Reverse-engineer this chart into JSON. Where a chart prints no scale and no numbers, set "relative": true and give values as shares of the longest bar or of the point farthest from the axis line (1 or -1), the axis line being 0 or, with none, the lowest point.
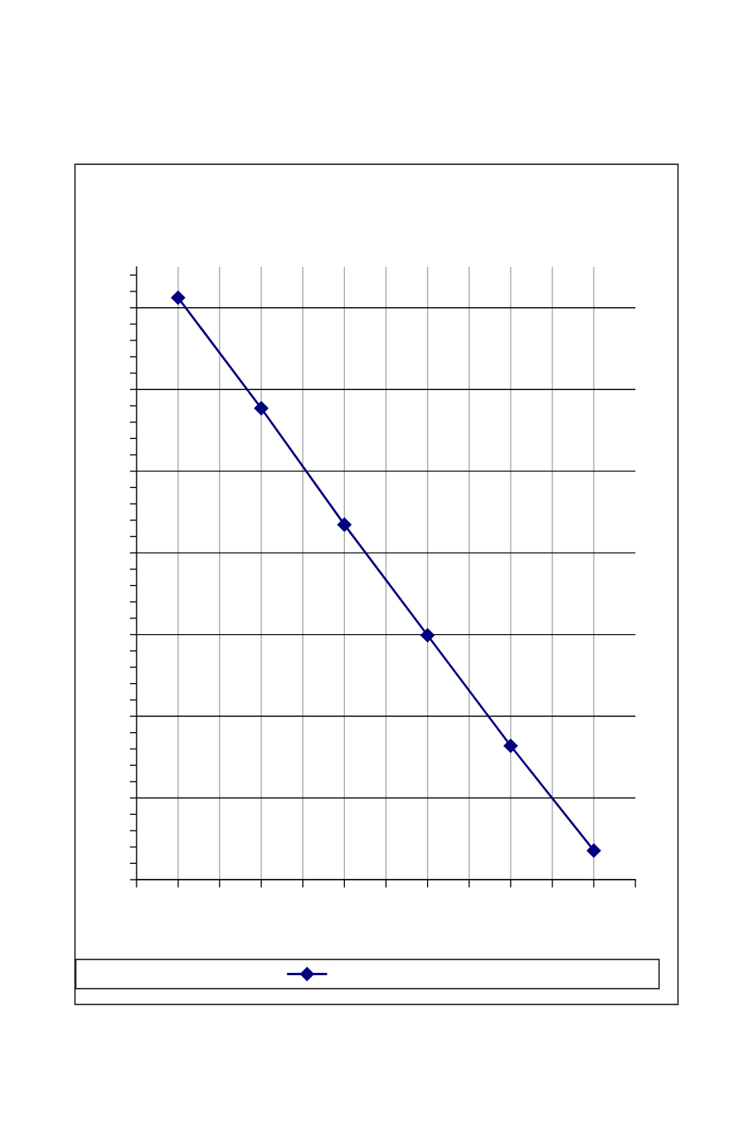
{
  "chart_data": {
    "type": "line",
    "categories": [
      null,
      null,
      null,
      null,
      null,
      null
    ],
    "series": [
      {
        "color": "#000080",
        "values": [
          1,
          0.81,
          0.61,
          0.42,
          0.23,
          0.05
        ]
      }
    ],
    "relative": true,
    "marker": "diamond",
    "grid": true
  }
}
